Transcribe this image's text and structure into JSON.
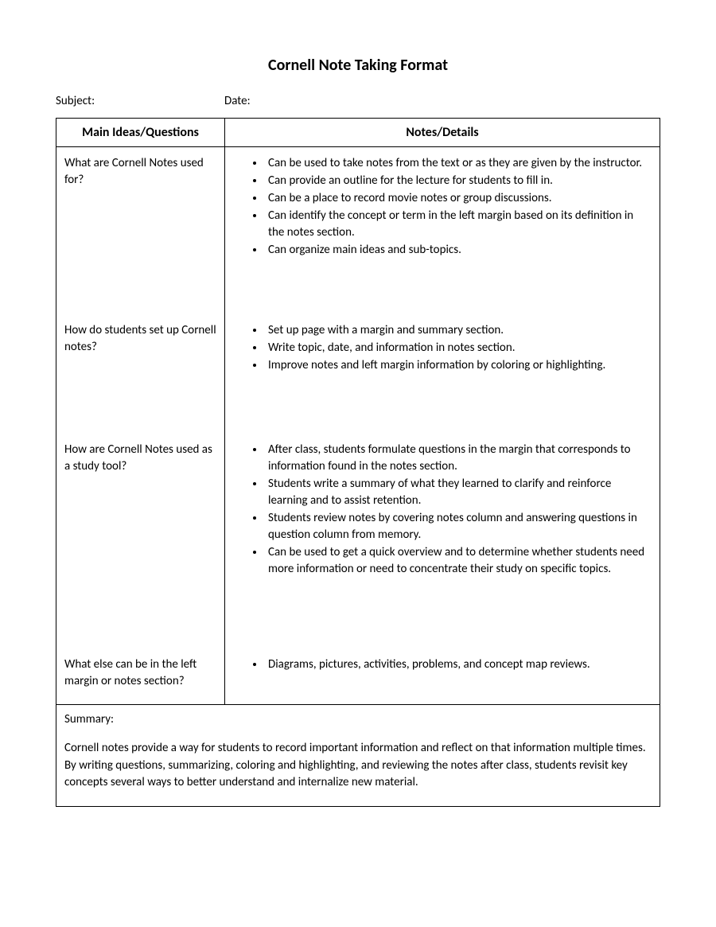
{
  "title": "Cornell Note Taking Format",
  "meta": {
    "subject_label": "Subject:",
    "date_label": "Date:"
  },
  "headers": {
    "left": "Main Ideas/Questions",
    "right": "Notes/Details"
  },
  "sections": [
    {
      "question": "What are Cornell Notes used for?",
      "notes": [
        "Can be used to take notes from the text or as they are given by the instructor.",
        "Can provide an outline for the lecture for students to fill in.",
        "Can be a place to record movie notes or group discussions.",
        "Can identify the concept or term in the left margin based on its definition in the notes section.",
        "Can organize main ideas and sub-topics."
      ]
    },
    {
      "question": "How do students set up Cornell notes?",
      "notes": [
        "Set up page with a margin and summary section.",
        "Write topic, date, and information in notes section.",
        "Improve notes and left margin information by coloring or highlighting."
      ]
    },
    {
      "question": "How are Cornell Notes used as a study tool?",
      "notes": [
        "After class, students formulate questions in the margin that corresponds to information found in the notes section.",
        "Students write a summary of what they learned to clarify and reinforce learning and to assist retention.",
        "Students review notes by covering notes column and answering questions in question column from memory.",
        "Can be used to get a quick overview and to determine whether students need more information or need to concentrate their study on specific topics."
      ]
    },
    {
      "question": "What else can be in the left margin or notes section?",
      "notes": [
        "Diagrams, pictures, activities, problems, and concept map reviews."
      ]
    }
  ],
  "summary": {
    "label": "Summary:",
    "text": "Cornell notes provide a way for students to record important information and reflect on that information multiple times.  By writing questions, summarizing, coloring and highlighting, and reviewing the notes after class, students revisit key concepts several ways to better understand and internalize new material."
  }
}
